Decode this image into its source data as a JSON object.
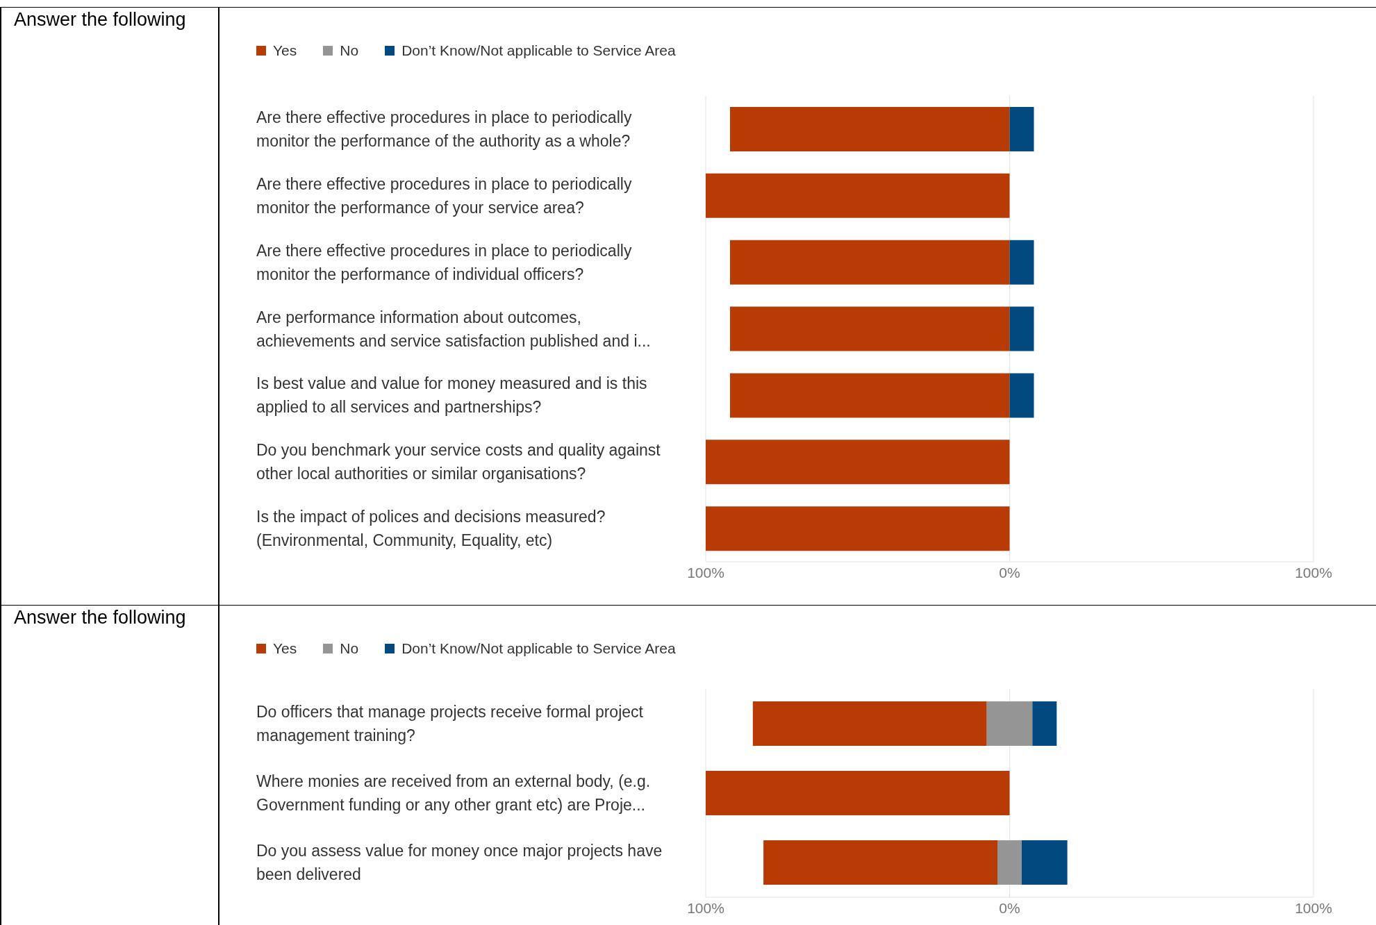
{
  "chart_data": [
    {
      "type": "bar",
      "orientation": "horizontal",
      "legend": "top left",
      "grid": "x",
      "annotations": [
        "Answer the following"
      ],
      "categories": [
        "Are there effective procedures in place to periodically monitor the performance of the authority as a whole?",
        "Are there effective procedures in place to periodically monitor the performance of your service area?",
        "Are there effective procedures in place to periodically monitor the performance of individual officers?",
        "Are performance information about outcomes, achievements and service satisfaction published and i...",
        "Is best value and value for money measured and is this applied to all services and partnerships?",
        "Do you benchmark your service costs and quality against other local authorities or similar organisations?",
        "Is the impact of polices and decisions measured? (Environmental, Community, Equality, etc)"
      ],
      "xlim": [
        -100,
        100
      ],
      "xticks": [
        {
          "value": -100,
          "label": "100%"
        },
        {
          "value": 0,
          "label": "0%"
        },
        {
          "value": 100,
          "label": "100%"
        }
      ],
      "series": [
        {
          "name": "Yes",
          "color": "#b83a04",
          "values": [
            92,
            100,
            92,
            92,
            92,
            100,
            100
          ],
          "base": [
            -92,
            -100,
            -92,
            -92,
            -92,
            -100,
            -100
          ]
        },
        {
          "name": "No",
          "color": "#959595",
          "values": [
            null,
            null,
            null,
            null,
            null,
            null,
            null
          ],
          "base": [
            null,
            null,
            null,
            null,
            null,
            null,
            null
          ]
        },
        {
          "name": "Don’t Know/Not applicable to Service Area",
          "color": "#01497f",
          "values": [
            8,
            null,
            8,
            8,
            8,
            null,
            null
          ],
          "base": [
            0,
            null,
            0,
            0,
            0,
            null,
            null
          ]
        }
      ]
    },
    {
      "type": "bar",
      "orientation": "horizontal",
      "legend": "top left",
      "grid": "x",
      "annotations": [
        "Answer the following"
      ],
      "categories": [
        "Do officers that manage projects receive formal project management training?",
        "Where monies are received from an external body, (e.g. Government funding or any other grant etc) are Proje...",
        "Do you assess value for money once major projects have been delivered"
      ],
      "xlim": [
        -100,
        100
      ],
      "xticks": [
        {
          "value": -100,
          "label": "100%"
        },
        {
          "value": 0,
          "label": "0%"
        },
        {
          "value": 100,
          "label": "100%"
        }
      ],
      "series": [
        {
          "name": "Yes",
          "color": "#b83a04",
          "values": [
            77,
            100,
            77
          ],
          "base": [
            -84.5,
            -100,
            -81
          ]
        },
        {
          "name": "No",
          "color": "#959595",
          "values": [
            15,
            null,
            8
          ],
          "base": [
            -7.5,
            null,
            -4
          ]
        },
        {
          "name": "Don’t Know/Not applicable to Service Area",
          "color": "#01497f",
          "values": [
            8,
            null,
            15
          ],
          "base": [
            7.5,
            null,
            4
          ]
        }
      ]
    }
  ]
}
